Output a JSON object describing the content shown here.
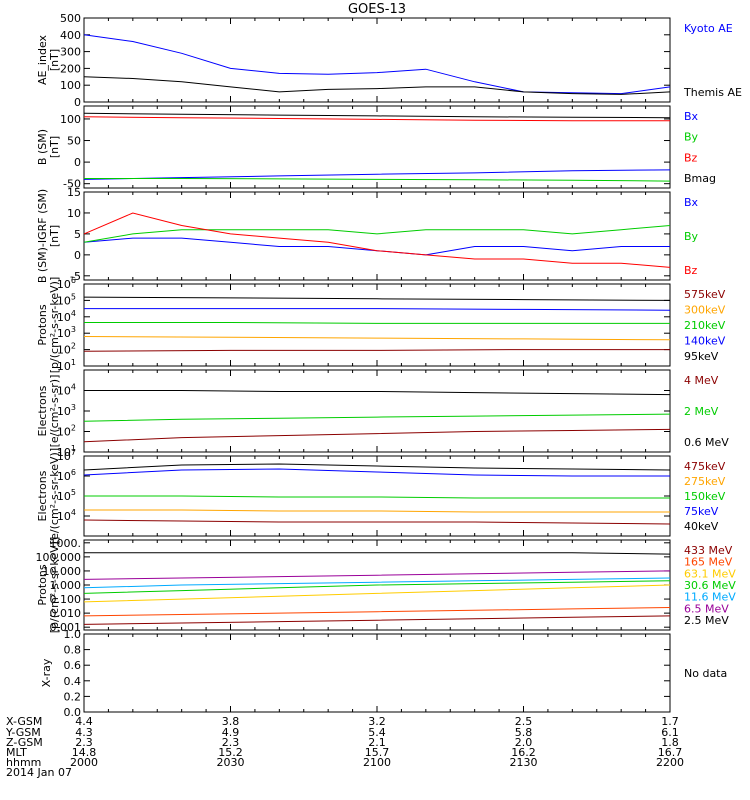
{
  "title": "GOES-13",
  "date_label": "2014 Jan 07",
  "x_axis": {
    "row_labels": [
      "X-GSM",
      "Y-GSM",
      "Z-GSM",
      "MLT",
      "hhmm"
    ],
    "time_ticks": [
      "2000",
      "2030",
      "2100",
      "2130",
      "2200"
    ],
    "values": [
      [
        "4.4",
        "3.8",
        "3.2",
        "2.5",
        "1.7"
      ],
      [
        "4.3",
        "4.9",
        "5.4",
        "5.8",
        "6.1"
      ],
      [
        "2.3",
        "2.3",
        "2.1",
        "2.0",
        "1.8"
      ],
      [
        "14.8",
        "15.2",
        "15.7",
        "16.2",
        "16.7"
      ],
      [
        "2000",
        "2030",
        "2100",
        "2130",
        "2200"
      ]
    ]
  },
  "chart_data": [
    {
      "type": "line",
      "id": "ae",
      "ylabel": [
        "AE_index",
        "[nT]"
      ],
      "ylim": [
        0,
        500
      ],
      "yscale": "linear",
      "yticks": [
        "0",
        "100",
        "200",
        "300",
        "400",
        "500"
      ],
      "yticks_vals": [
        0,
        100,
        200,
        300,
        400,
        500
      ],
      "x_minutes": [
        0,
        10,
        20,
        30,
        40,
        50,
        60,
        70,
        80,
        90,
        100,
        110,
        120
      ],
      "series": [
        {
          "name": "Kyoto AE",
          "color": "#0000ff",
          "values": [
            400,
            360,
            290,
            200,
            170,
            165,
            175,
            195,
            120,
            60,
            55,
            50,
            90
          ]
        },
        {
          "name": "Themis AE",
          "color": "#000000",
          "values": [
            150,
            140,
            120,
            90,
            60,
            75,
            80,
            90,
            90,
            60,
            50,
            45,
            60
          ]
        }
      ]
    },
    {
      "type": "line",
      "id": "bsm",
      "ylabel": [
        "B (SM)",
        "[nT]"
      ],
      "ylim": [
        -60,
        130
      ],
      "yscale": "linear",
      "yticks": [
        "-50",
        "0",
        "50",
        "100"
      ],
      "yticks_vals": [
        -50,
        0,
        50,
        100
      ],
      "x_minutes": [
        0,
        20,
        40,
        60,
        80,
        100,
        120
      ],
      "series": [
        {
          "name": "Bx",
          "color": "#0000ff",
          "values": [
            -40,
            -36,
            -32,
            -28,
            -25,
            -20,
            -18
          ]
        },
        {
          "name": "By",
          "color": "#00cc00",
          "values": [
            -38,
            -38,
            -39,
            -40,
            -41,
            -42,
            -44
          ]
        },
        {
          "name": "Bz",
          "color": "#ff0000",
          "values": [
            105,
            103,
            101,
            99,
            97,
            96,
            96
          ]
        },
        {
          "name": "Bmag",
          "color": "#000000",
          "values": [
            113,
            111,
            109,
            107,
            105,
            104,
            103
          ]
        }
      ]
    },
    {
      "type": "line",
      "id": "bigrf",
      "ylabel": [
        "B (SM)-IGRF (SM)",
        "[nT]"
      ],
      "ylim": [
        -6,
        15
      ],
      "yscale": "linear",
      "yticks": [
        "-5",
        "0",
        "5",
        "10",
        "15"
      ],
      "yticks_vals": [
        -5,
        0,
        5,
        10,
        15
      ],
      "x_minutes": [
        0,
        10,
        20,
        30,
        40,
        50,
        60,
        70,
        80,
        90,
        100,
        110,
        120
      ],
      "series": [
        {
          "name": "Bx",
          "color": "#0000ff",
          "values": [
            3,
            4,
            4,
            3,
            2,
            2,
            1,
            0,
            2,
            2,
            1,
            2,
            2
          ]
        },
        {
          "name": "By",
          "color": "#00cc00",
          "values": [
            3,
            5,
            6,
            6,
            6,
            6,
            5,
            6,
            6,
            6,
            5,
            6,
            7
          ]
        },
        {
          "name": "Bz",
          "color": "#ff0000",
          "values": [
            5,
            10,
            7,
            5,
            4,
            3,
            1,
            0,
            -1,
            -1,
            -2,
            -2,
            -3
          ]
        }
      ]
    },
    {
      "type": "line",
      "id": "protons",
      "ylabel": [
        "Protons",
        "[p/(cm²-s-sr-keV)]"
      ],
      "ylim": [
        1,
        6
      ],
      "yscale": "log",
      "yticks": [
        "10",
        "10",
        "10",
        "10",
        "10",
        "10"
      ],
      "yticks_exp": [
        "1",
        "2",
        "3",
        "4",
        "5",
        "6"
      ],
      "yticks_vals": [
        1,
        2,
        3,
        4,
        5,
        6
      ],
      "x_minutes": [
        0,
        30,
        60,
        90,
        120
      ],
      "series": [
        {
          "name": "575keV",
          "color": "#8b0000",
          "values": [
            1.9,
            1.95,
            1.95,
            2.0,
            2.0
          ]
        },
        {
          "name": "300keV",
          "color": "#ffa500",
          "values": [
            2.8,
            2.75,
            2.7,
            2.65,
            2.6
          ]
        },
        {
          "name": "210keV",
          "color": "#00cc00",
          "values": [
            3.65,
            3.65,
            3.6,
            3.6,
            3.6
          ]
        },
        {
          "name": "140keV",
          "color": "#0000ff",
          "values": [
            4.5,
            4.5,
            4.5,
            4.45,
            4.4
          ]
        },
        {
          "name": "95keV",
          "color": "#000000",
          "values": [
            5.2,
            5.15,
            5.1,
            5.05,
            5.0
          ]
        }
      ]
    },
    {
      "type": "line",
      "id": "electrons_mev",
      "ylabel": [
        "Electrons",
        "[e/(cm²-s-sr)]"
      ],
      "ylim": [
        1,
        5
      ],
      "yscale": "log",
      "yticks": [
        "10",
        "10",
        "10",
        "10"
      ],
      "yticks_exp": [
        "1",
        "2",
        "3",
        "4"
      ],
      "yticks_vals": [
        1,
        2,
        3,
        4
      ],
      "x_minutes": [
        0,
        20,
        40,
        60,
        80,
        100,
        120
      ],
      "series": [
        {
          "name": "4 MeV",
          "color": "#8b0000",
          "values": [
            1.5,
            1.7,
            1.8,
            1.9,
            2.0,
            2.05,
            2.1
          ]
        },
        {
          "name": "2 MeV",
          "color": "#00cc00",
          "values": [
            2.5,
            2.6,
            2.65,
            2.7,
            2.75,
            2.8,
            2.85
          ]
        },
        {
          "name": "0.6 MeV",
          "color": "#000000",
          "values": [
            4.0,
            4.0,
            3.95,
            3.95,
            3.9,
            3.85,
            3.8
          ]
        }
      ]
    },
    {
      "type": "line",
      "id": "electrons_kev",
      "ylabel": [
        "Electrons",
        "[e/(cm²-s-sr-keV)]"
      ],
      "ylim": [
        3,
        7
      ],
      "yscale": "log",
      "yticks": [
        "10",
        "10",
        "10",
        "10"
      ],
      "yticks_exp": [
        "4",
        "5",
        "6",
        "7"
      ],
      "yticks_vals": [
        4,
        5,
        6,
        7
      ],
      "x_minutes": [
        0,
        20,
        40,
        60,
        80,
        100,
        120
      ],
      "series": [
        {
          "name": "475keV",
          "color": "#8b0000",
          "values": [
            3.8,
            3.75,
            3.7,
            3.7,
            3.7,
            3.65,
            3.6
          ]
        },
        {
          "name": "275keV",
          "color": "#ffa500",
          "values": [
            4.3,
            4.3,
            4.25,
            4.25,
            4.2,
            4.2,
            4.2
          ]
        },
        {
          "name": "150keV",
          "color": "#00cc00",
          "values": [
            5.0,
            5.0,
            4.95,
            4.95,
            4.9,
            4.9,
            4.9
          ]
        },
        {
          "name": "75keV",
          "color": "#0000ff",
          "values": [
            6.05,
            6.3,
            6.35,
            6.2,
            6.05,
            6.0,
            6.0
          ]
        },
        {
          "name": "40keV",
          "color": "#000000",
          "values": [
            6.3,
            6.55,
            6.6,
            6.5,
            6.4,
            6.35,
            6.3
          ]
        }
      ]
    },
    {
      "type": "line",
      "id": "protons_mev",
      "ylabel": [
        "Protons",
        "[p/(cm²-s-sr-keV)]"
      ],
      "ylim": [
        -3.2,
        3.2
      ],
      "yscale": "log",
      "yticks": [
        "0.001",
        "0.010",
        "0.100",
        "1.000",
        "10.000",
        "100.000",
        "1000."
      ],
      "yticks_vals": [
        -3,
        -2,
        -1,
        0,
        1,
        2,
        3
      ],
      "x_minutes": [
        0,
        20,
        40,
        60,
        80,
        100,
        120
      ],
      "series": [
        {
          "name": "433 MeV",
          "color": "#8b0000",
          "values": [
            -2.8,
            -2.7,
            -2.6,
            -2.5,
            -2.4,
            -2.3,
            -2.2
          ]
        },
        {
          "name": "165 MeV",
          "color": "#ff4500",
          "values": [
            -2.2,
            -2.1,
            -2.0,
            -1.9,
            -1.8,
            -1.7,
            -1.6
          ]
        },
        {
          "name": "63.1 MeV",
          "color": "#ffcc00",
          "values": [
            -1.2,
            -1.0,
            -0.8,
            -0.6,
            -0.4,
            -0.2,
            0.0
          ]
        },
        {
          "name": "30.6 MeV",
          "color": "#00cc00",
          "values": [
            -0.6,
            -0.4,
            -0.2,
            0.0,
            0.1,
            0.2,
            0.3
          ]
        },
        {
          "name": "11.6 MeV",
          "color": "#00aaff",
          "values": [
            -0.2,
            0.0,
            0.1,
            0.2,
            0.3,
            0.4,
            0.5
          ]
        },
        {
          "name": "6.5 MeV",
          "color": "#990099",
          "values": [
            0.4,
            0.5,
            0.6,
            0.7,
            0.8,
            0.9,
            1.0
          ]
        },
        {
          "name": "2.5 MeV",
          "color": "#000000",
          "values": [
            2.3,
            2.3,
            2.3,
            2.3,
            2.3,
            2.3,
            2.2
          ]
        }
      ]
    },
    {
      "type": "line",
      "id": "xray",
      "ylabel": [
        "X-ray"
      ],
      "ylim": [
        0,
        1
      ],
      "yscale": "linear",
      "yticks": [
        "0.0",
        "0.2",
        "0.4",
        "0.6",
        "0.8",
        "1.0"
      ],
      "yticks_vals": [
        0,
        0.2,
        0.4,
        0.6,
        0.8,
        1.0
      ],
      "x_minutes": [],
      "series": [],
      "note": "No data"
    }
  ]
}
